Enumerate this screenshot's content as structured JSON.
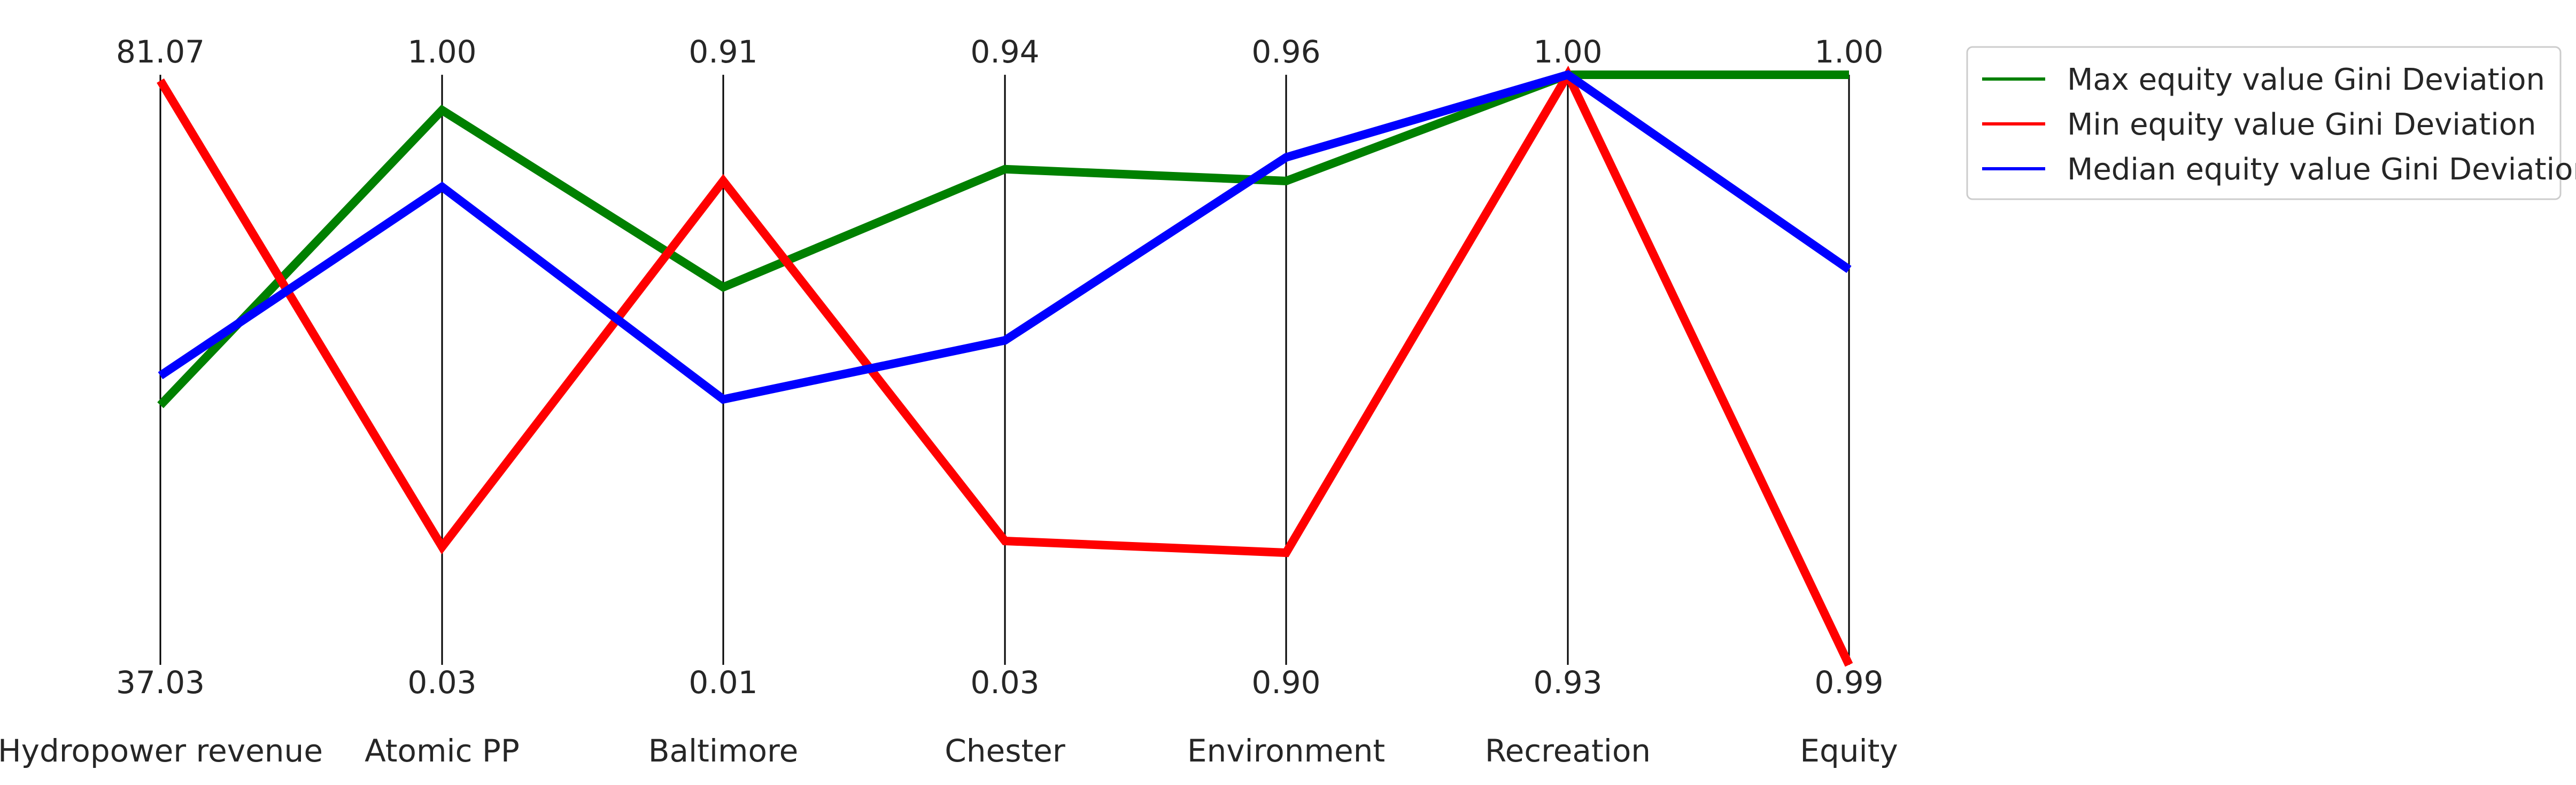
{
  "chart_data": {
    "type": "parallel-coordinates",
    "axes": [
      {
        "label": "Hydropower revenue",
        "top": "81.07",
        "bottom": "37.03"
      },
      {
        "label": "Atomic PP",
        "top": "1.00",
        "bottom": "0.03"
      },
      {
        "label": "Baltimore",
        "top": "0.91",
        "bottom": "0.01"
      },
      {
        "label": "Chester",
        "top": "0.94",
        "bottom": "0.03"
      },
      {
        "label": "Environment",
        "top": "0.96",
        "bottom": "0.90"
      },
      {
        "label": "Recreation",
        "top": "1.00",
        "bottom": "0.93"
      },
      {
        "label": "Equity",
        "top": "1.00",
        "bottom": "0.99"
      }
    ],
    "series": [
      {
        "name": "Max equity value Gini Deviation",
        "color": "#008000",
        "values": [
          0.44,
          0.94,
          0.64,
          0.84,
          0.82,
          1.0,
          1.0
        ]
      },
      {
        "name": "Min equity value Gini Deviation",
        "color": "#ff0000",
        "values": [
          0.99,
          0.2,
          0.82,
          0.21,
          0.19,
          1.0,
          0.0
        ]
      },
      {
        "name": "Median equity value Gini Deviation",
        "color": "#0000ff",
        "values": [
          0.49,
          0.81,
          0.45,
          0.55,
          0.86,
          1.0,
          0.67
        ]
      }
    ],
    "legend_position": "top-right",
    "grid": false
  }
}
